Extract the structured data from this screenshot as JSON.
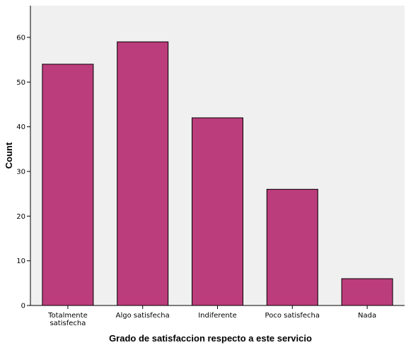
{
  "chart_data": {
    "type": "bar",
    "categories": [
      [
        "Totalmente",
        "satisfecha"
      ],
      [
        "Algo satisfecha"
      ],
      [
        "Indiferente"
      ],
      [
        "Poco satisfecha"
      ],
      [
        "Nada"
      ]
    ],
    "values": [
      54,
      59,
      42,
      26,
      6
    ],
    "xlabel": "Grado de satisfaccion respecto a este servicio",
    "ylabel": "Count",
    "ylim": [
      0,
      60
    ],
    "yticks": [
      "0",
      "10",
      "20",
      "30",
      "40",
      "50",
      "60"
    ],
    "grid": false,
    "bar_color": "#bb3d7b",
    "plot_background": "#f0f0f0"
  }
}
